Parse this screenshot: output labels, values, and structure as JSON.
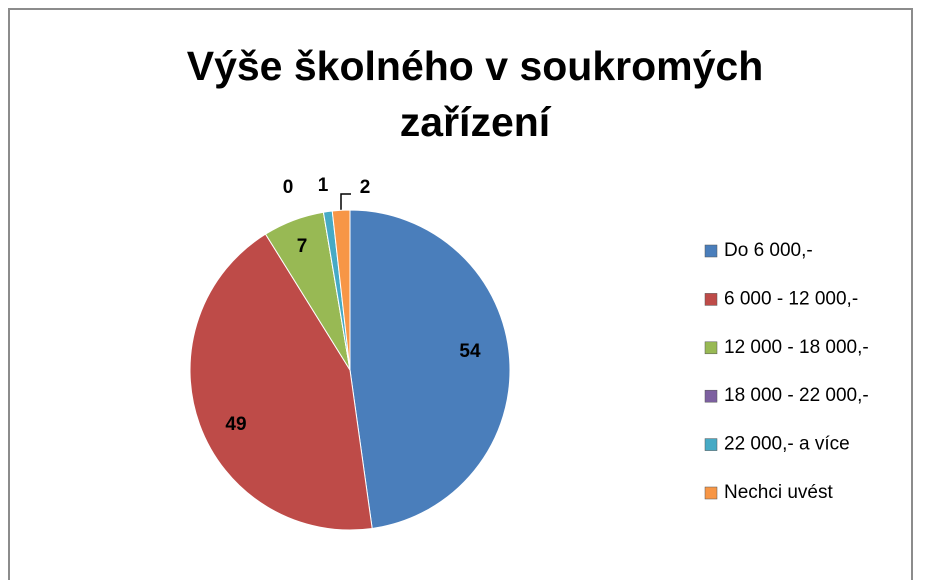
{
  "chart_data": {
    "type": "pie",
    "title": "Výše školného v soukromých zařízení",
    "categories": [
      "Do 6 000,-",
      "6 000 - 12 000,-",
      "12 000 - 18 000,-",
      "18 000 - 22 000,-",
      "22 000,-  a více",
      "Nechci uvést"
    ],
    "values": [
      54,
      49,
      7,
      0,
      1,
      2
    ],
    "colors": [
      "#4a7ebb",
      "#be4b48",
      "#98b954",
      "#7d60a0",
      "#46aac5",
      "#f79646"
    ],
    "legend": "right"
  }
}
